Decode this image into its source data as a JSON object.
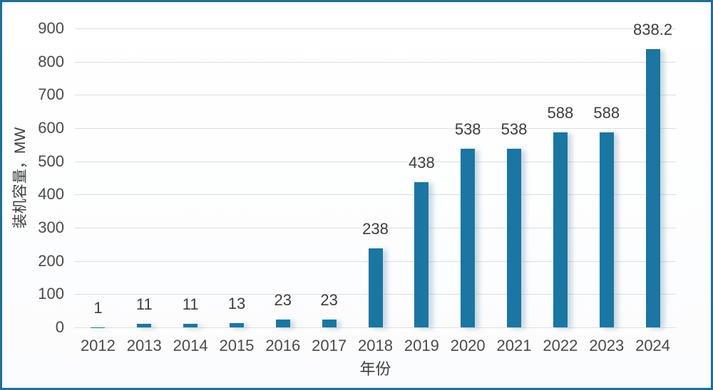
{
  "chart_data": {
    "type": "bar",
    "title": "",
    "categories": [
      "2012",
      "2013",
      "2014",
      "2015",
      "2016",
      "2017",
      "2018",
      "2019",
      "2020",
      "2021",
      "2022",
      "2023",
      "2024"
    ],
    "values": [
      1,
      11,
      11,
      13,
      23,
      23,
      238,
      438,
      538,
      538,
      588,
      588,
      838.2
    ],
    "value_labels": [
      "1",
      "11",
      "11",
      "13",
      "23",
      "23",
      "238",
      "438",
      "538",
      "538",
      "588",
      "588",
      "838.2"
    ],
    "xlabel": "年份",
    "ylabel": "装机容量，MW",
    "ylim": [
      0,
      900
    ],
    "ytick_step": 100,
    "yticks": [
      0,
      100,
      200,
      300,
      400,
      500,
      600,
      700,
      800,
      900
    ],
    "grid": true,
    "legend": "none",
    "colors": {
      "bar": "#1A76A2",
      "frame_border": "#1C6F99",
      "gridline": "#DBDEE1",
      "text": "#3D3D3D"
    }
  }
}
